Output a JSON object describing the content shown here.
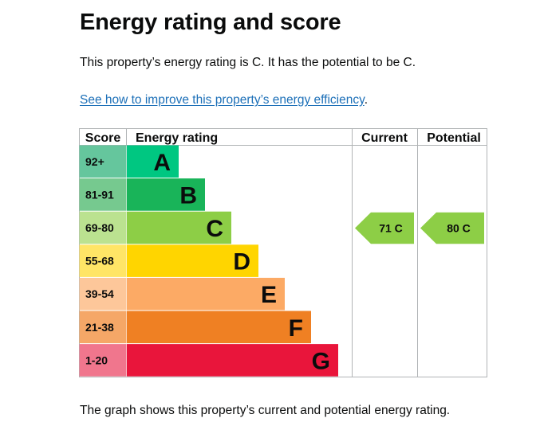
{
  "page": {
    "heading": "Energy rating and score",
    "summary": "This property’s energy rating is C. It has the potential to be C.",
    "improve_link": "See how to improve this property’s energy efficiency",
    "improve_link_suffix": ".",
    "footer": "The graph shows this property’s current and potential energy rating."
  },
  "chart_data": {
    "type": "bar",
    "columns": [
      "Score",
      "Energy rating",
      "Current",
      "Potential"
    ],
    "bands": [
      {
        "score": "92+",
        "rating": "A",
        "color": "#0e8c5d",
        "score_bg": "#65c69d",
        "bar_color": "#00c781"
      },
      {
        "score": "81-91",
        "rating": "B",
        "color": "#19b459",
        "score_bg": "#76c98f",
        "bar_color": "#19b459"
      },
      {
        "score": "69-80",
        "rating": "C",
        "color": "#8dce46",
        "score_bg": "#bbe290",
        "bar_color": "#8dce46"
      },
      {
        "score": "55-68",
        "rating": "D",
        "color": "#ffd500",
        "score_bg": "#ffe566",
        "bar_color": "#ffd500"
      },
      {
        "score": "39-54",
        "rating": "E",
        "color": "#fcaa65",
        "score_bg": "#fdc79a",
        "bar_color": "#fcaa65"
      },
      {
        "score": "21-38",
        "rating": "F",
        "color": "#ef8023",
        "score_bg": "#f5a767",
        "bar_color": "#ef8023"
      },
      {
        "score": "1-20",
        "rating": "G",
        "color": "#e9153b",
        "score_bg": "#f0768d",
        "bar_color": "#e9153b"
      }
    ],
    "current": {
      "value": 71,
      "rating": "C",
      "label": "71 C",
      "color": "#8dce46"
    },
    "potential": {
      "value": 80,
      "rating": "C",
      "label": "80 C",
      "color": "#8dce46"
    }
  }
}
